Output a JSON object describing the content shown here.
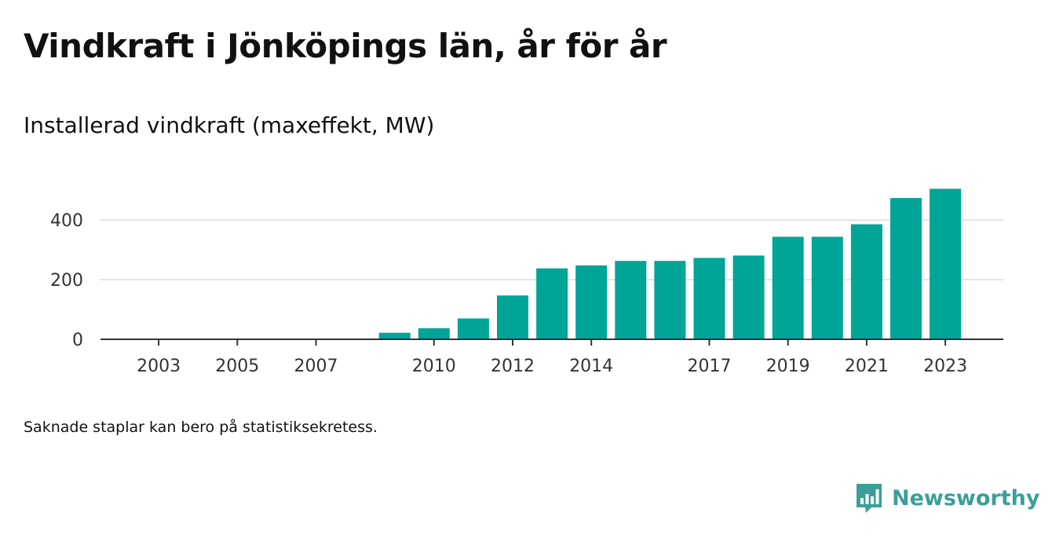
{
  "header": {
    "title": "Vindkraft i Jönköpings län, år för år",
    "subtitle": "Installerad vindkraft (maxeffekt, MW)"
  },
  "footnote": "Saknade staplar kan bero på statistiksekretess.",
  "brand": {
    "name": "Newsworthy",
    "icon": "newsworthy-logo-icon",
    "color": "#3b9f97"
  },
  "chart_data": {
    "type": "bar",
    "title": "Vindkraft i Jönköpings län, år för år",
    "subtitle": "Installerad vindkraft (maxeffekt, MW)",
    "x": [
      2002,
      2003,
      2004,
      2005,
      2006,
      2007,
      2008,
      2009,
      2010,
      2011,
      2012,
      2013,
      2014,
      2015,
      2016,
      2017,
      2018,
      2019,
      2020,
      2021,
      2022,
      2023
    ],
    "values": [
      null,
      null,
      null,
      null,
      null,
      null,
      null,
      22,
      37,
      70,
      147,
      238,
      248,
      263,
      263,
      273,
      281,
      344,
      344,
      386,
      474,
      505
    ],
    "x_tick_labels": [
      "2003",
      "2005",
      "2007",
      "2010",
      "2012",
      "2014",
      "2017",
      "2019",
      "2021",
      "2023"
    ],
    "y_ticks": [
      0,
      200,
      400
    ],
    "ylim": [
      0,
      540
    ],
    "bar_color": "#00a598",
    "grid": true,
    "legend": "none"
  }
}
